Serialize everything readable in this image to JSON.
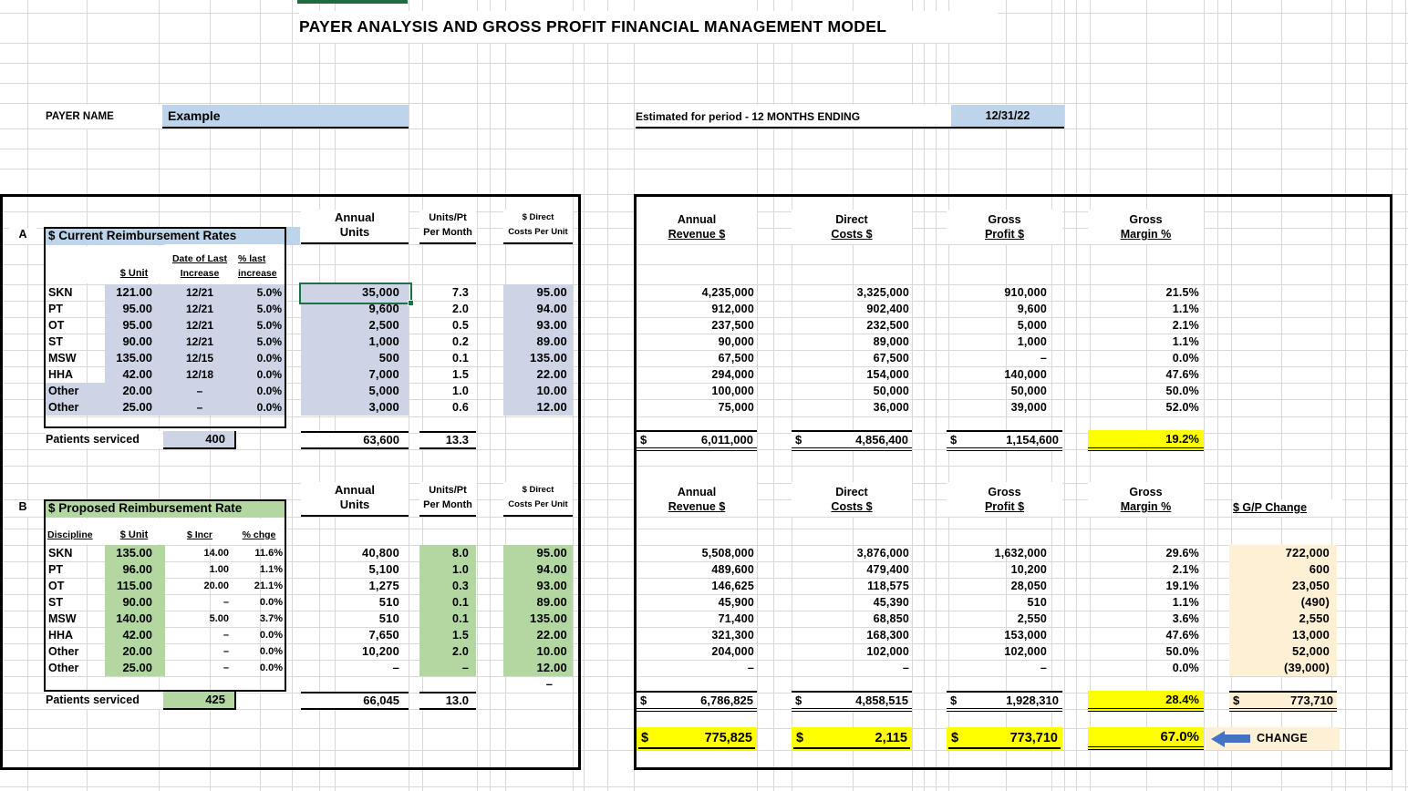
{
  "title": "PAYER ANALYSIS AND GROSS PROFIT FINANCIAL MANAGEMENT MODEL",
  "payer": {
    "label": "PAYER NAME",
    "value": "Example"
  },
  "period": {
    "label": "Estimated for period -  12 MONTHS ENDING",
    "value": "12/31/22"
  },
  "headers": {
    "dollar": "$",
    "annual_units_1": "Annual",
    "annual_units_2": "Units",
    "units_pt_1": "Units/Pt",
    "units_pt_2": "Per Month",
    "direct_1": "$ Direct",
    "direct_2": "Costs Per Unit",
    "revenue_1": "Annual",
    "revenue_2": "Revenue $",
    "costs_1": "Direct",
    "costs_2": "Costs $",
    "profit_1": "Gross",
    "profit_2": "Profit $",
    "margin_1": "Gross",
    "margin_2": "Margin %",
    "gp_change": "$ G/P Change"
  },
  "section_a": {
    "label": "A",
    "header": "$ Current Reimbursement Rates",
    "col_unit": "$ Unit",
    "col_date_1": "Date of Last",
    "col_date_2": "Increase",
    "col_pct_1": "% last",
    "col_pct_2": "increase",
    "rows": [
      {
        "discipline": "SKN",
        "unit": "121.00",
        "date": "12/21",
        "pct": "5.0%",
        "annual_units": "35,000",
        "units_pt": "7.3",
        "direct_cost": "95.00",
        "revenue": "4,235,000",
        "costs": "3,325,000",
        "profit": "910,000",
        "margin": "21.5%"
      },
      {
        "discipline": "PT",
        "unit": "95.00",
        "date": "12/21",
        "pct": "5.0%",
        "annual_units": "9,600",
        "units_pt": "2.0",
        "direct_cost": "94.00",
        "revenue": "912,000",
        "costs": "902,400",
        "profit": "9,600",
        "margin": "1.1%"
      },
      {
        "discipline": "OT",
        "unit": "95.00",
        "date": "12/21",
        "pct": "5.0%",
        "annual_units": "2,500",
        "units_pt": "0.5",
        "direct_cost": "93.00",
        "revenue": "237,500",
        "costs": "232,500",
        "profit": "5,000",
        "margin": "2.1%"
      },
      {
        "discipline": "ST",
        "unit": "90.00",
        "date": "12/21",
        "pct": "5.0%",
        "annual_units": "1,000",
        "units_pt": "0.2",
        "direct_cost": "89.00",
        "revenue": "90,000",
        "costs": "89,000",
        "profit": "1,000",
        "margin": "1.1%"
      },
      {
        "discipline": "MSW",
        "unit": "135.00",
        "date": "12/15",
        "pct": "0.0%",
        "annual_units": "500",
        "units_pt": "0.1",
        "direct_cost": "135.00",
        "revenue": "67,500",
        "costs": "67,500",
        "profit": "–",
        "margin": "0.0%"
      },
      {
        "discipline": "HHA",
        "unit": "42.00",
        "date": "12/18",
        "pct": "0.0%",
        "annual_units": "7,000",
        "units_pt": "1.5",
        "direct_cost": "22.00",
        "revenue": "294,000",
        "costs": "154,000",
        "profit": "140,000",
        "margin": "47.6%"
      },
      {
        "discipline": "Other",
        "unit": "20.00",
        "date": "–",
        "pct": "0.0%",
        "annual_units": "5,000",
        "units_pt": "1.0",
        "direct_cost": "10.00",
        "revenue": "100,000",
        "costs": "50,000",
        "profit": "50,000",
        "margin": "50.0%"
      },
      {
        "discipline": "Other",
        "unit": "25.00",
        "date": "–",
        "pct": "0.0%",
        "annual_units": "3,000",
        "units_pt": "0.6",
        "direct_cost": "12.00",
        "revenue": "75,000",
        "costs": "36,000",
        "profit": "39,000",
        "margin": "52.0%"
      }
    ],
    "patients_label": "Patients serviced",
    "patients_value": "400",
    "totals": {
      "annual_units": "63,600",
      "units_pt": "13.3",
      "revenue": "6,011,000",
      "costs": "4,856,400",
      "profit": "1,154,600",
      "margin": "19.2%"
    }
  },
  "section_b": {
    "label": "B",
    "header": "$ Proposed Reimbursement Rate",
    "col_discipline": "Discipline",
    "col_unit": "$ Unit",
    "col_incr": "$ Incr",
    "col_chge": "% chge",
    "rows": [
      {
        "discipline": "SKN",
        "unit": "135.00",
        "incr": "14.00",
        "chge": "11.6%",
        "annual_units": "40,800",
        "units_pt": "8.0",
        "direct_cost": "95.00",
        "revenue": "5,508,000",
        "costs": "3,876,000",
        "profit": "1,632,000",
        "margin": "29.6%",
        "gp_change": "722,000"
      },
      {
        "discipline": "PT",
        "unit": "96.00",
        "incr": "1.00",
        "chge": "1.1%",
        "annual_units": "5,100",
        "units_pt": "1.0",
        "direct_cost": "94.00",
        "revenue": "489,600",
        "costs": "479,400",
        "profit": "10,200",
        "margin": "2.1%",
        "gp_change": "600"
      },
      {
        "discipline": "OT",
        "unit": "115.00",
        "incr": "20.00",
        "chge": "21.1%",
        "annual_units": "1,275",
        "units_pt": "0.3",
        "direct_cost": "93.00",
        "revenue": "146,625",
        "costs": "118,575",
        "profit": "28,050",
        "margin": "19.1%",
        "gp_change": "23,050"
      },
      {
        "discipline": "ST",
        "unit": "90.00",
        "incr": "–",
        "chge": "0.0%",
        "annual_units": "510",
        "units_pt": "0.1",
        "direct_cost": "89.00",
        "revenue": "45,900",
        "costs": "45,390",
        "profit": "510",
        "margin": "1.1%",
        "gp_change": "(490)"
      },
      {
        "discipline": "MSW",
        "unit": "140.00",
        "incr": "5.00",
        "chge": "3.7%",
        "annual_units": "510",
        "units_pt": "0.1",
        "direct_cost": "135.00",
        "revenue": "71,400",
        "costs": "68,850",
        "profit": "2,550",
        "margin": "3.6%",
        "gp_change": "2,550"
      },
      {
        "discipline": "HHA",
        "unit": "42.00",
        "incr": "–",
        "chge": "0.0%",
        "annual_units": "7,650",
        "units_pt": "1.5",
        "direct_cost": "22.00",
        "revenue": "321,300",
        "costs": "168,300",
        "profit": "153,000",
        "margin": "47.6%",
        "gp_change": "13,000"
      },
      {
        "discipline": "Other",
        "unit": "20.00",
        "incr": "–",
        "chge": "0.0%",
        "annual_units": "10,200",
        "units_pt": "2.0",
        "direct_cost": "10.00",
        "revenue": "204,000",
        "costs": "102,000",
        "profit": "102,000",
        "margin": "50.0%",
        "gp_change": "52,000"
      },
      {
        "discipline": "Other",
        "unit": "25.00",
        "incr": "–",
        "chge": "0.0%",
        "annual_units": "–",
        "units_pt": "–",
        "direct_cost": "12.00",
        "revenue": "–",
        "costs": "–",
        "profit": "–",
        "margin": "0.0%",
        "gp_change": "(39,000)"
      }
    ],
    "extra_cost_dash": "–",
    "patients_label": "Patients serviced",
    "patients_value": "425",
    "totals": {
      "annual_units": "66,045",
      "units_pt": "13.0",
      "revenue": "6,786,825",
      "costs": "4,858,515",
      "profit": "1,928,310",
      "margin": "28.4%",
      "gp_change": "773,710"
    }
  },
  "bottom": {
    "revenue": "775,825",
    "costs": "2,115",
    "profit": "773,710",
    "margin": "67.0%",
    "change_label": "CHANGE"
  },
  "colors": {
    "light_blue": "#bdd4ea",
    "lavender": "#ccd4e6",
    "green": "#b2d7a1",
    "yellow": "#ffff00",
    "cream": "#fdf0d5",
    "arrow_blue": "#4472c4",
    "selection_green": "#1f7145",
    "header_bar_green": "#1e6b41"
  }
}
